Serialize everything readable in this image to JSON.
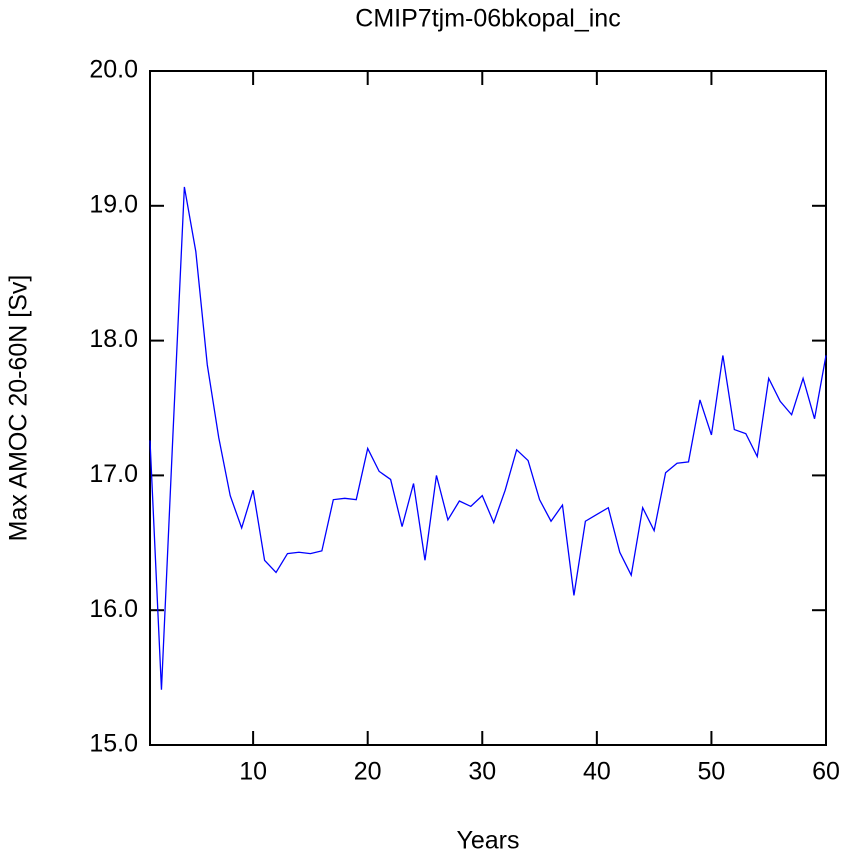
{
  "chart_data": {
    "type": "line",
    "title": "CMIP7tjm-06bkopal_inc",
    "x_label": "Years",
    "y_label": "Max AMOC 20-60N [Sv]",
    "x": [
      1,
      2,
      3,
      4,
      5,
      6,
      7,
      8,
      9,
      10,
      11,
      12,
      13,
      14,
      15,
      16,
      17,
      18,
      19,
      20,
      21,
      22,
      23,
      24,
      25,
      26,
      27,
      28,
      29,
      30,
      31,
      32,
      33,
      34,
      35,
      36,
      37,
      38,
      39,
      40,
      41,
      42,
      43,
      44,
      45,
      46,
      47,
      48,
      49,
      50,
      51,
      52,
      53,
      54,
      55,
      56,
      57,
      58,
      59,
      60
    ],
    "series": [
      {
        "color": "#0000ff",
        "values": [
          17.26,
          15.41,
          17.3,
          19.14,
          18.66,
          17.82,
          17.28,
          16.85,
          16.61,
          16.89,
          16.37,
          16.28,
          16.42,
          16.43,
          16.42,
          16.44,
          16.82,
          16.83,
          16.82,
          17.2,
          17.03,
          16.97,
          16.62,
          16.94,
          16.37,
          17.0,
          16.67,
          16.81,
          16.77,
          16.85,
          16.65,
          16.89,
          17.19,
          17.11,
          16.82,
          16.66,
          16.78,
          16.11,
          16.66,
          16.71,
          16.76,
          16.43,
          16.26,
          16.76,
          16.59,
          17.02,
          17.09,
          17.1,
          17.56,
          17.3,
          17.89,
          17.34,
          17.31,
          17.14,
          17.72,
          17.55,
          17.45,
          17.72,
          17.42,
          17.89
        ]
      }
    ],
    "xlim": [
      1,
      60
    ],
    "xticks": [
      10,
      20,
      30,
      40,
      50,
      60
    ],
    "ylim": [
      15,
      20
    ],
    "yticks": [
      {
        "value": 15,
        "label": "15.0"
      },
      {
        "value": 16,
        "label": "16.0"
      },
      {
        "value": 17,
        "label": "17.0"
      },
      {
        "value": 18,
        "label": "18.0"
      },
      {
        "value": 19,
        "label": "19.0"
      },
      {
        "value": 20,
        "label": "20.0"
      }
    ],
    "grid": false
  }
}
